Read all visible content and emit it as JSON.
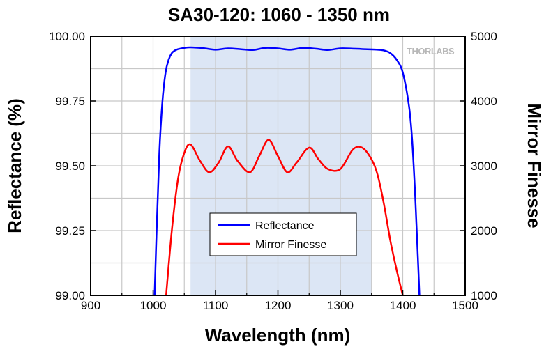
{
  "chart_data": {
    "type": "line",
    "title": "SA30-120: 1060 - 1350 nm",
    "xlabel": "Wavelength (nm)",
    "ylabel": "Reflectance (%)",
    "y2label": "Mirror Finesse",
    "xlim": [
      900,
      1500
    ],
    "ylim": [
      99.0,
      100.0
    ],
    "y2lim": [
      1000,
      5000
    ],
    "xticks": [
      900,
      1000,
      1100,
      1200,
      1300,
      1400,
      1500
    ],
    "yticks": [
      99.0,
      99.25,
      99.5,
      99.75,
      100.0
    ],
    "ytick_labels": [
      "99.00",
      "99.25",
      "99.50",
      "99.75",
      "100.00"
    ],
    "y2ticks": [
      1000,
      2000,
      3000,
      4000,
      5000
    ],
    "grid": true,
    "legend_position": "bottom-center",
    "highlight_band": [
      1060,
      1350
    ],
    "highlight_color": "#dce6f5",
    "logo_text": "THORLABS",
    "series": [
      {
        "name": "Reflectance",
        "axis": "left",
        "color": "#0000ff",
        "x": [
          1000,
          1005,
          1010,
          1015,
          1020,
          1025,
          1030,
          1035,
          1040,
          1050,
          1060,
          1080,
          1100,
          1120,
          1140,
          1160,
          1180,
          1200,
          1220,
          1240,
          1260,
          1280,
          1300,
          1320,
          1340,
          1360,
          1370,
          1380,
          1390,
          1400,
          1410,
          1415,
          1420,
          1425,
          1430
        ],
        "y": [
          98.8,
          99.2,
          99.55,
          99.75,
          99.86,
          99.91,
          99.935,
          99.945,
          99.95,
          99.955,
          99.957,
          99.954,
          99.948,
          99.953,
          99.95,
          99.947,
          99.955,
          99.953,
          99.948,
          99.955,
          99.952,
          99.947,
          99.953,
          99.952,
          99.95,
          99.948,
          99.945,
          99.935,
          99.91,
          99.86,
          99.73,
          99.6,
          99.38,
          99.1,
          98.8
        ]
      },
      {
        "name": "Mirror Finesse",
        "axis": "right",
        "color": "#ff0000",
        "x": [
          1020,
          1030,
          1040,
          1050,
          1060,
          1075,
          1090,
          1105,
          1120,
          1135,
          1155,
          1170,
          1185,
          1200,
          1215,
          1230,
          1250,
          1265,
          1280,
          1300,
          1320,
          1335,
          1350,
          1360,
          1370,
          1380,
          1390,
          1400,
          1410
        ],
        "y": [
          900,
          2000,
          2800,
          3200,
          3330,
          3080,
          2900,
          3050,
          3300,
          3080,
          2900,
          3150,
          3400,
          3150,
          2900,
          3050,
          3280,
          3100,
          2950,
          2950,
          3250,
          3280,
          3100,
          2850,
          2400,
          1850,
          1400,
          1000,
          600
        ]
      }
    ]
  }
}
